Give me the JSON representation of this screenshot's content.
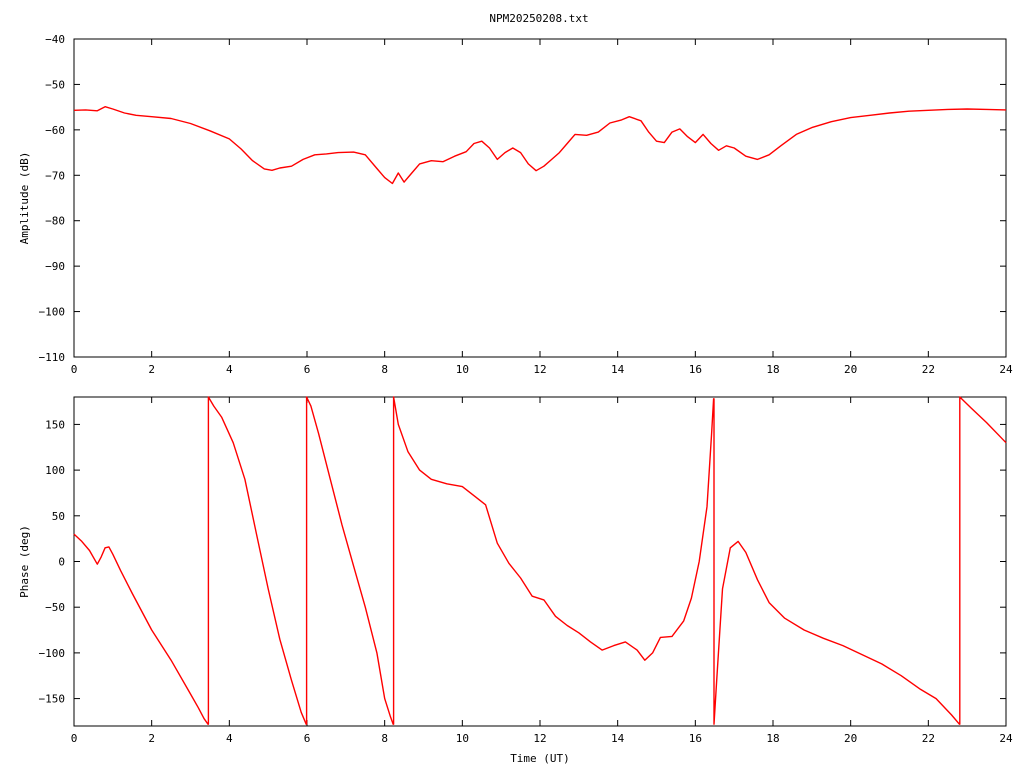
{
  "title": "NPM20250208.txt",
  "colors": {
    "series": "#ff0000",
    "frame": "#000000",
    "background": "#ffffff"
  },
  "chart_data": [
    {
      "type": "line",
      "title": "NPM20250208.txt",
      "xlabel": "",
      "ylabel": "Amplitude (dB)",
      "xlim": [
        0,
        24
      ],
      "ylim": [
        -110,
        -40
      ],
      "xticks": [
        0,
        2,
        4,
        6,
        8,
        10,
        12,
        14,
        16,
        18,
        20,
        22,
        24
      ],
      "yticks": [
        -40,
        -50,
        -60,
        -70,
        -80,
        -90,
        -100,
        -110
      ],
      "grid": false,
      "legend": "none",
      "series": [
        {
          "color": "#ff0000",
          "points": [
            [
              0,
              -55.7
            ],
            [
              0.3,
              -55.6
            ],
            [
              0.6,
              -55.8
            ],
            [
              0.8,
              -54.9
            ],
            [
              1,
              -55.4
            ],
            [
              1.3,
              -56.3
            ],
            [
              1.6,
              -56.8
            ],
            [
              2,
              -57.1
            ],
            [
              2.5,
              -57.5
            ],
            [
              3,
              -58.6
            ],
            [
              3.5,
              -60.2
            ],
            [
              4,
              -62.0
            ],
            [
              4.3,
              -64.2
            ],
            [
              4.6,
              -66.8
            ],
            [
              4.9,
              -68.6
            ],
            [
              5.1,
              -68.9
            ],
            [
              5.3,
              -68.4
            ],
            [
              5.6,
              -68.0
            ],
            [
              5.9,
              -66.5
            ],
            [
              6.2,
              -65.5
            ],
            [
              6.5,
              -65.3
            ],
            [
              6.8,
              -65.0
            ],
            [
              7.2,
              -64.9
            ],
            [
              7.5,
              -65.5
            ],
            [
              7.8,
              -68.5
            ],
            [
              8.0,
              -70.5
            ],
            [
              8.2,
              -71.8
            ],
            [
              8.35,
              -69.5
            ],
            [
              8.5,
              -71.5
            ],
            [
              8.7,
              -69.5
            ],
            [
              8.9,
              -67.5
            ],
            [
              9.2,
              -66.8
            ],
            [
              9.5,
              -67.0
            ],
            [
              9.8,
              -65.8
            ],
            [
              10.1,
              -64.8
            ],
            [
              10.3,
              -63.0
            ],
            [
              10.5,
              -62.5
            ],
            [
              10.7,
              -64.0
            ],
            [
              10.9,
              -66.5
            ],
            [
              11.1,
              -65.0
            ],
            [
              11.3,
              -64.0
            ],
            [
              11.5,
              -65.0
            ],
            [
              11.7,
              -67.5
            ],
            [
              11.9,
              -69.0
            ],
            [
              12.1,
              -68.0
            ],
            [
              12.3,
              -66.5
            ],
            [
              12.5,
              -65.0
            ],
            [
              12.7,
              -63.0
            ],
            [
              12.9,
              -61.0
            ],
            [
              13.2,
              -61.2
            ],
            [
              13.5,
              -60.5
            ],
            [
              13.8,
              -58.5
            ],
            [
              14.1,
              -57.8
            ],
            [
              14.3,
              -57.1
            ],
            [
              14.6,
              -58.0
            ],
            [
              14.8,
              -60.5
            ],
            [
              15.0,
              -62.5
            ],
            [
              15.2,
              -62.8
            ],
            [
              15.4,
              -60.5
            ],
            [
              15.6,
              -59.8
            ],
            [
              15.8,
              -61.5
            ],
            [
              16.0,
              -62.8
            ],
            [
              16.2,
              -61.0
            ],
            [
              16.4,
              -63.0
            ],
            [
              16.6,
              -64.5
            ],
            [
              16.8,
              -63.5
            ],
            [
              17.0,
              -64.0
            ],
            [
              17.3,
              -65.8
            ],
            [
              17.6,
              -66.5
            ],
            [
              17.9,
              -65.5
            ],
            [
              18.2,
              -63.5
            ],
            [
              18.6,
              -61.0
            ],
            [
              19.0,
              -59.5
            ],
            [
              19.5,
              -58.2
            ],
            [
              20,
              -57.3
            ],
            [
              20.5,
              -56.8
            ],
            [
              21,
              -56.3
            ],
            [
              21.5,
              -55.9
            ],
            [
              22,
              -55.7
            ],
            [
              22.5,
              -55.5
            ],
            [
              23,
              -55.4
            ],
            [
              23.5,
              -55.5
            ],
            [
              24,
              -55.6
            ]
          ]
        }
      ]
    },
    {
      "type": "line",
      "title": "",
      "xlabel": "Time (UT)",
      "ylabel": "Phase (deg)",
      "xlim": [
        0,
        24
      ],
      "ylim": [
        -180,
        180
      ],
      "xticks": [
        0,
        2,
        4,
        6,
        8,
        10,
        12,
        14,
        16,
        18,
        20,
        22,
        24
      ],
      "yticks": [
        150,
        100,
        50,
        0,
        -50,
        -100,
        -150
      ],
      "grid": false,
      "legend": "none",
      "series": [
        {
          "color": "#ff0000",
          "points": [
            [
              0,
              30
            ],
            [
              0.2,
              22
            ],
            [
              0.4,
              12
            ],
            [
              0.6,
              -3
            ],
            [
              0.7,
              5
            ],
            [
              0.8,
              15
            ],
            [
              0.9,
              16
            ],
            [
              1.0,
              8
            ],
            [
              1.2,
              -10
            ],
            [
              1.5,
              -35
            ],
            [
              2,
              -75
            ],
            [
              2.5,
              -108
            ],
            [
              3,
              -145
            ],
            [
              3.2,
              -160
            ],
            [
              3.35,
              -172
            ],
            [
              3.45,
              -178
            ],
            [
              3.46,
              180
            ],
            [
              3.6,
              170
            ],
            [
              3.8,
              158
            ],
            [
              4.1,
              130
            ],
            [
              4.4,
              90
            ],
            [
              4.7,
              30
            ],
            [
              5,
              -30
            ],
            [
              5.3,
              -85
            ],
            [
              5.6,
              -130
            ],
            [
              5.85,
              -165
            ],
            [
              5.98,
              -178
            ],
            [
              5.99,
              180
            ],
            [
              6.1,
              170
            ],
            [
              6.3,
              140
            ],
            [
              6.6,
              90
            ],
            [
              6.9,
              40
            ],
            [
              7.2,
              -5
            ],
            [
              7.5,
              -50
            ],
            [
              7.8,
              -100
            ],
            [
              8.0,
              -150
            ],
            [
              8.15,
              -170
            ],
            [
              8.22,
              -178
            ],
            [
              8.23,
              180
            ],
            [
              8.35,
              150
            ],
            [
              8.6,
              120
            ],
            [
              8.9,
              100
            ],
            [
              9.2,
              90
            ],
            [
              9.6,
              85
            ],
            [
              10.0,
              82
            ],
            [
              10.3,
              72
            ],
            [
              10.6,
              62
            ],
            [
              10.9,
              20
            ],
            [
              11.2,
              -2
            ],
            [
              11.5,
              -18
            ],
            [
              11.8,
              -38
            ],
            [
              12.1,
              -42
            ],
            [
              12.4,
              -60
            ],
            [
              12.7,
              -70
            ],
            [
              13.0,
              -78
            ],
            [
              13.3,
              -88
            ],
            [
              13.6,
              -97
            ],
            [
              13.9,
              -92
            ],
            [
              14.2,
              -88
            ],
            [
              14.5,
              -97
            ],
            [
              14.7,
              -108
            ],
            [
              14.9,
              -100
            ],
            [
              15.1,
              -83
            ],
            [
              15.4,
              -82
            ],
            [
              15.7,
              -65
            ],
            [
              15.9,
              -40
            ],
            [
              16.1,
              0
            ],
            [
              16.3,
              60
            ],
            [
              16.42,
              140
            ],
            [
              16.47,
              178
            ],
            [
              16.48,
              -178
            ],
            [
              16.55,
              -130
            ],
            [
              16.7,
              -30
            ],
            [
              16.9,
              15
            ],
            [
              17.1,
              22
            ],
            [
              17.3,
              10
            ],
            [
              17.6,
              -20
            ],
            [
              17.9,
              -45
            ],
            [
              18.3,
              -62
            ],
            [
              18.8,
              -75
            ],
            [
              19.3,
              -84
            ],
            [
              19.8,
              -92
            ],
            [
              20.3,
              -102
            ],
            [
              20.8,
              -112
            ],
            [
              21.3,
              -125
            ],
            [
              21.8,
              -140
            ],
            [
              22.2,
              -150
            ],
            [
              22.6,
              -168
            ],
            [
              22.8,
              -178
            ],
            [
              22.81,
              180
            ],
            [
              23.1,
              168
            ],
            [
              23.5,
              152
            ],
            [
              24,
              130
            ]
          ]
        }
      ]
    }
  ]
}
